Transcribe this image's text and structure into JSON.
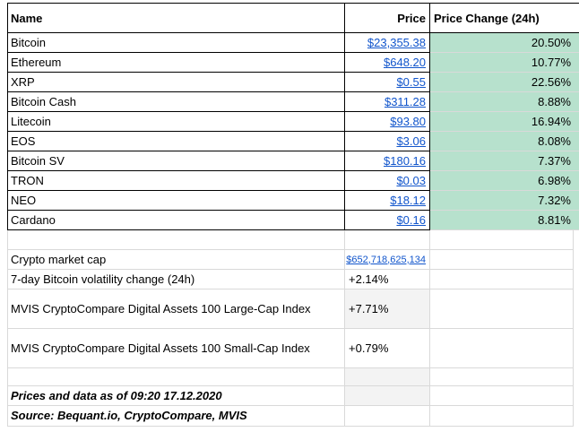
{
  "table": {
    "headers": {
      "name": "Name",
      "price": "Price",
      "change": "Price Change (24h)"
    },
    "rows": [
      {
        "name": "Bitcoin",
        "price": "$23,355.38",
        "change": "20.50%"
      },
      {
        "name": "Ethereum",
        "price": "$648.20",
        "change": "10.77%"
      },
      {
        "name": "XRP",
        "price": "$0.55",
        "change": "22.56%"
      },
      {
        "name": "Bitcoin Cash",
        "price": "$311.28",
        "change": "8.88%"
      },
      {
        "name": "Litecoin",
        "price": "$93.80",
        "change": "16.94%"
      },
      {
        "name": "EOS",
        "price": "$3.06",
        "change": "8.08%"
      },
      {
        "name": "Bitcoin SV",
        "price": "$180.16",
        "change": "7.37%"
      },
      {
        "name": "TRON",
        "price": "$0.03",
        "change": "6.98%"
      },
      {
        "name": "NEO",
        "price": "$18.12",
        "change": "7.32%"
      },
      {
        "name": "Cardano",
        "price": "$0.16",
        "change": "8.81%"
      }
    ]
  },
  "stats": [
    {
      "label": "Crypto market cap",
      "value": "$652,718,625,134"
    },
    {
      "label": "7-day Bitcoin volatility change (24h)",
      "value": "+2.14%"
    },
    {
      "label": "MVIS CryptoCompare Digital Assets 100 Large-Cap Index",
      "value": "+7.71%"
    },
    {
      "label": "MVIS CryptoCompare Digital Assets 100 Small-Cap Index",
      "value": "+0.79%"
    }
  ],
  "footer": {
    "timestamp_note": "Prices and data as of 09:20 17.12.2020",
    "source_note": "Source: Bequant.io, CryptoCompare, MVIS"
  },
  "colors": {
    "positive_change_bg": "#b7e1cd",
    "link_blue": "#1155cc",
    "muted_cell_fill": "#f3f3f3",
    "gridline_gray": "#d9d9d9",
    "table_border": "#000000"
  }
}
